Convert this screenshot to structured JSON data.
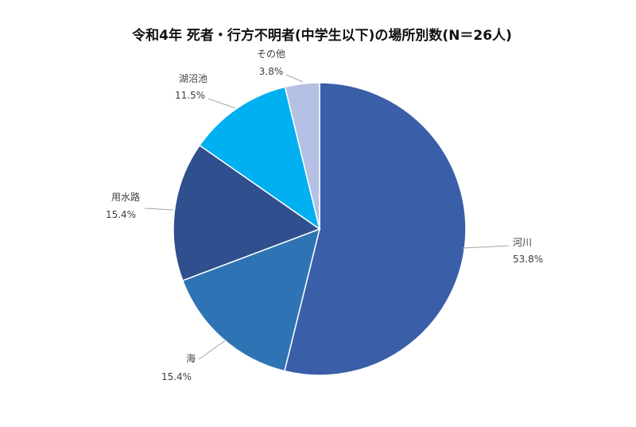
{
  "chart_data": {
    "type": "pie",
    "title": "令和4年 死者・行方不明者(中学生以下)の場所別数(N＝26人)",
    "slices": [
      {
        "name": "河川",
        "value": 53.8,
        "label": "53.8%",
        "color": "#3a5fa8"
      },
      {
        "name": "海",
        "value": 15.4,
        "label": "15.4%",
        "color": "#2e74b5"
      },
      {
        "name": "用水路",
        "value": 15.4,
        "label": "15.4%",
        "color": "#2f4f8f"
      },
      {
        "name": "湖沼池",
        "value": 11.5,
        "label": "11.5%",
        "color": "#00b0f0"
      },
      {
        "name": "その他",
        "value": 3.8,
        "label": "3.8%",
        "color": "#b4c0e4"
      }
    ],
    "start_angle": "12 o'clock",
    "direction": "clockwise",
    "legend": "none"
  }
}
